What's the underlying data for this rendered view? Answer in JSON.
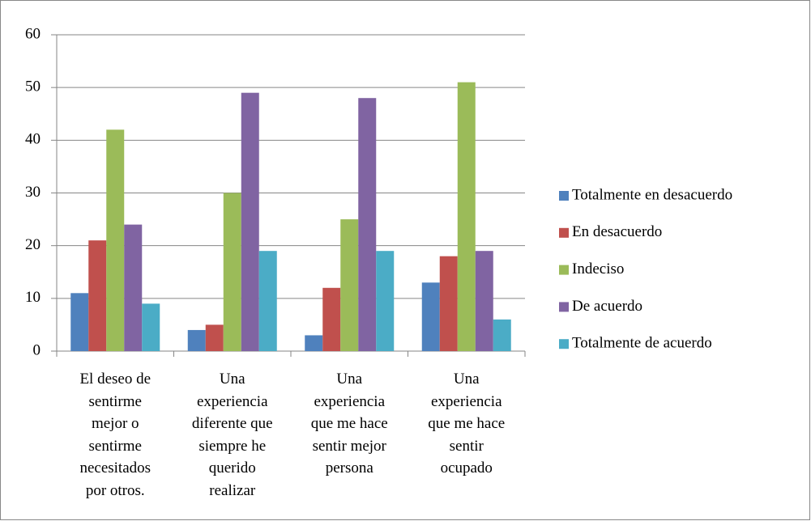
{
  "chart_data": {
    "type": "bar",
    "categories": [
      "El deseo de sentirme mejor o sentirme necesitados por otros.",
      "Una experiencia diferente que siempre he querido realizar",
      "Una experiencia que me hace sentir mejor persona",
      "Una experiencia que me hace sentir ocupado"
    ],
    "series": [
      {
        "name": "Totalmente en desacuerdo",
        "color": "#4f81bd",
        "values": [
          11,
          4,
          3,
          13
        ]
      },
      {
        "name": "En desacuerdo",
        "color": "#c0504d",
        "values": [
          21,
          5,
          12,
          18
        ]
      },
      {
        "name": "Indeciso",
        "color": "#9bbb59",
        "values": [
          42,
          30,
          25,
          51
        ]
      },
      {
        "name": "De acuerdo",
        "color": "#8064a2",
        "values": [
          24,
          49,
          48,
          19
        ]
      },
      {
        "name": "Totalmente de acuerdo",
        "color": "#4bacc6",
        "values": [
          9,
          19,
          19,
          6
        ]
      }
    ],
    "ylim": [
      0,
      60
    ],
    "yticks": [
      0,
      10,
      20,
      30,
      40,
      50,
      60
    ],
    "grid": true,
    "legend": "right"
  }
}
